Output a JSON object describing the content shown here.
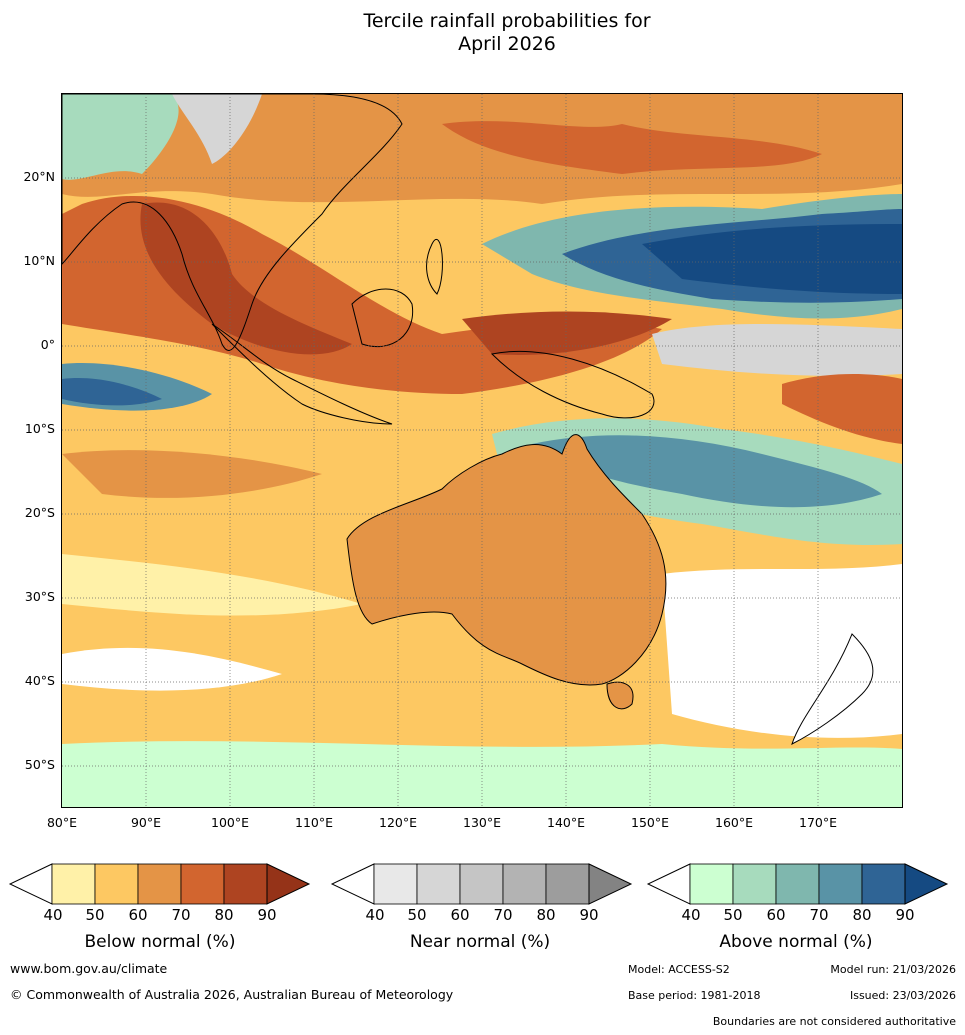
{
  "title_line1": "Tercile rainfall probabilities for",
  "title_line2": "April 2026",
  "lat_labels": [
    "20°N",
    "10°N",
    "0°",
    "10°S",
    "20°S",
    "30°S",
    "40°S",
    "50°S"
  ],
  "lon_labels": [
    "80°E",
    "90°E",
    "100°E",
    "110°E",
    "120°E",
    "130°E",
    "140°E",
    "150°E",
    "160°E",
    "170°E"
  ],
  "colorbars": [
    {
      "label": "Below normal (%)",
      "ticks": [
        "40",
        "50",
        "60",
        "70",
        "80",
        "90"
      ],
      "colors": [
        "#fff1a8",
        "#fdc862",
        "#e49446",
        "#d2652f",
        "#ae4421",
        "#953318"
      ]
    },
    {
      "label": "Near normal (%)",
      "ticks": [
        "40",
        "50",
        "60",
        "70",
        "80",
        "90"
      ],
      "colors": [
        "#e8e8e8",
        "#d6d6d6",
        "#c5c5c5",
        "#b3b3b3",
        "#9d9d9d",
        "#838383"
      ]
    },
    {
      "label": "Above normal (%)",
      "ticks": [
        "40",
        "50",
        "60",
        "70",
        "80",
        "90"
      ],
      "colors": [
        "#ccffd1",
        "#a7dbbd",
        "#7fb7ae",
        "#5993a6",
        "#2f6495",
        "#154a82"
      ]
    }
  ],
  "footer": {
    "website": "www.bom.gov.au/climate",
    "copyright": "© Commonwealth of Australia 2026, Australian Bureau of Meteorology",
    "model": "Model: ACCESS-S2",
    "model_run": "Model run: 21/03/2026",
    "base_period": "Base period: 1981-2018",
    "issued": "Issued: 23/03/2026",
    "disclaimer": "Boundaries are not considered authoritative"
  }
}
